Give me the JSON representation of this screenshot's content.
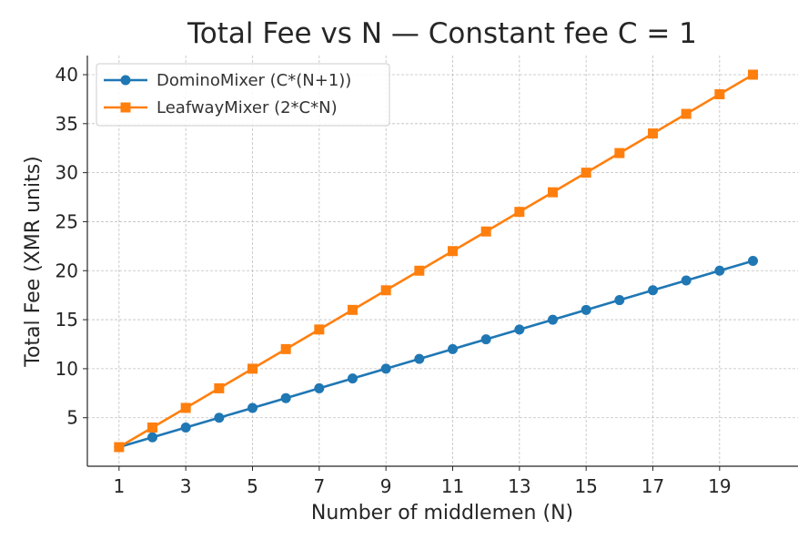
{
  "chart_data": {
    "type": "line",
    "title": "Total Fee vs N — Constant fee C = 1",
    "xlabel": "Number of middlemen (N)",
    "ylabel": "Total Fee (XMR units)",
    "x": [
      1,
      2,
      3,
      4,
      5,
      6,
      7,
      8,
      9,
      10,
      11,
      12,
      13,
      14,
      15,
      16,
      17,
      18,
      19,
      20
    ],
    "xlim": [
      0.05,
      21.35
    ],
    "ylim": [
      0.05,
      41.95
    ],
    "xticks": [
      1,
      3,
      5,
      7,
      9,
      11,
      13,
      15,
      17,
      19
    ],
    "yticks": [
      5,
      10,
      15,
      20,
      25,
      30,
      35,
      40
    ],
    "grid": true,
    "legend_position": "top-left",
    "series": [
      {
        "name": "DominoMixer (C*(N+1))",
        "color": "#1f77b4",
        "marker": "circle",
        "values": [
          2,
          3,
          4,
          5,
          6,
          7,
          8,
          9,
          10,
          11,
          12,
          13,
          14,
          15,
          16,
          17,
          18,
          19,
          20,
          21
        ]
      },
      {
        "name": "LeafwayMixer (2*C*N)",
        "color": "#ff7f0e",
        "marker": "square",
        "values": [
          2,
          4,
          6,
          8,
          10,
          12,
          14,
          16,
          18,
          20,
          22,
          24,
          26,
          28,
          30,
          32,
          34,
          36,
          38,
          40
        ]
      }
    ]
  }
}
